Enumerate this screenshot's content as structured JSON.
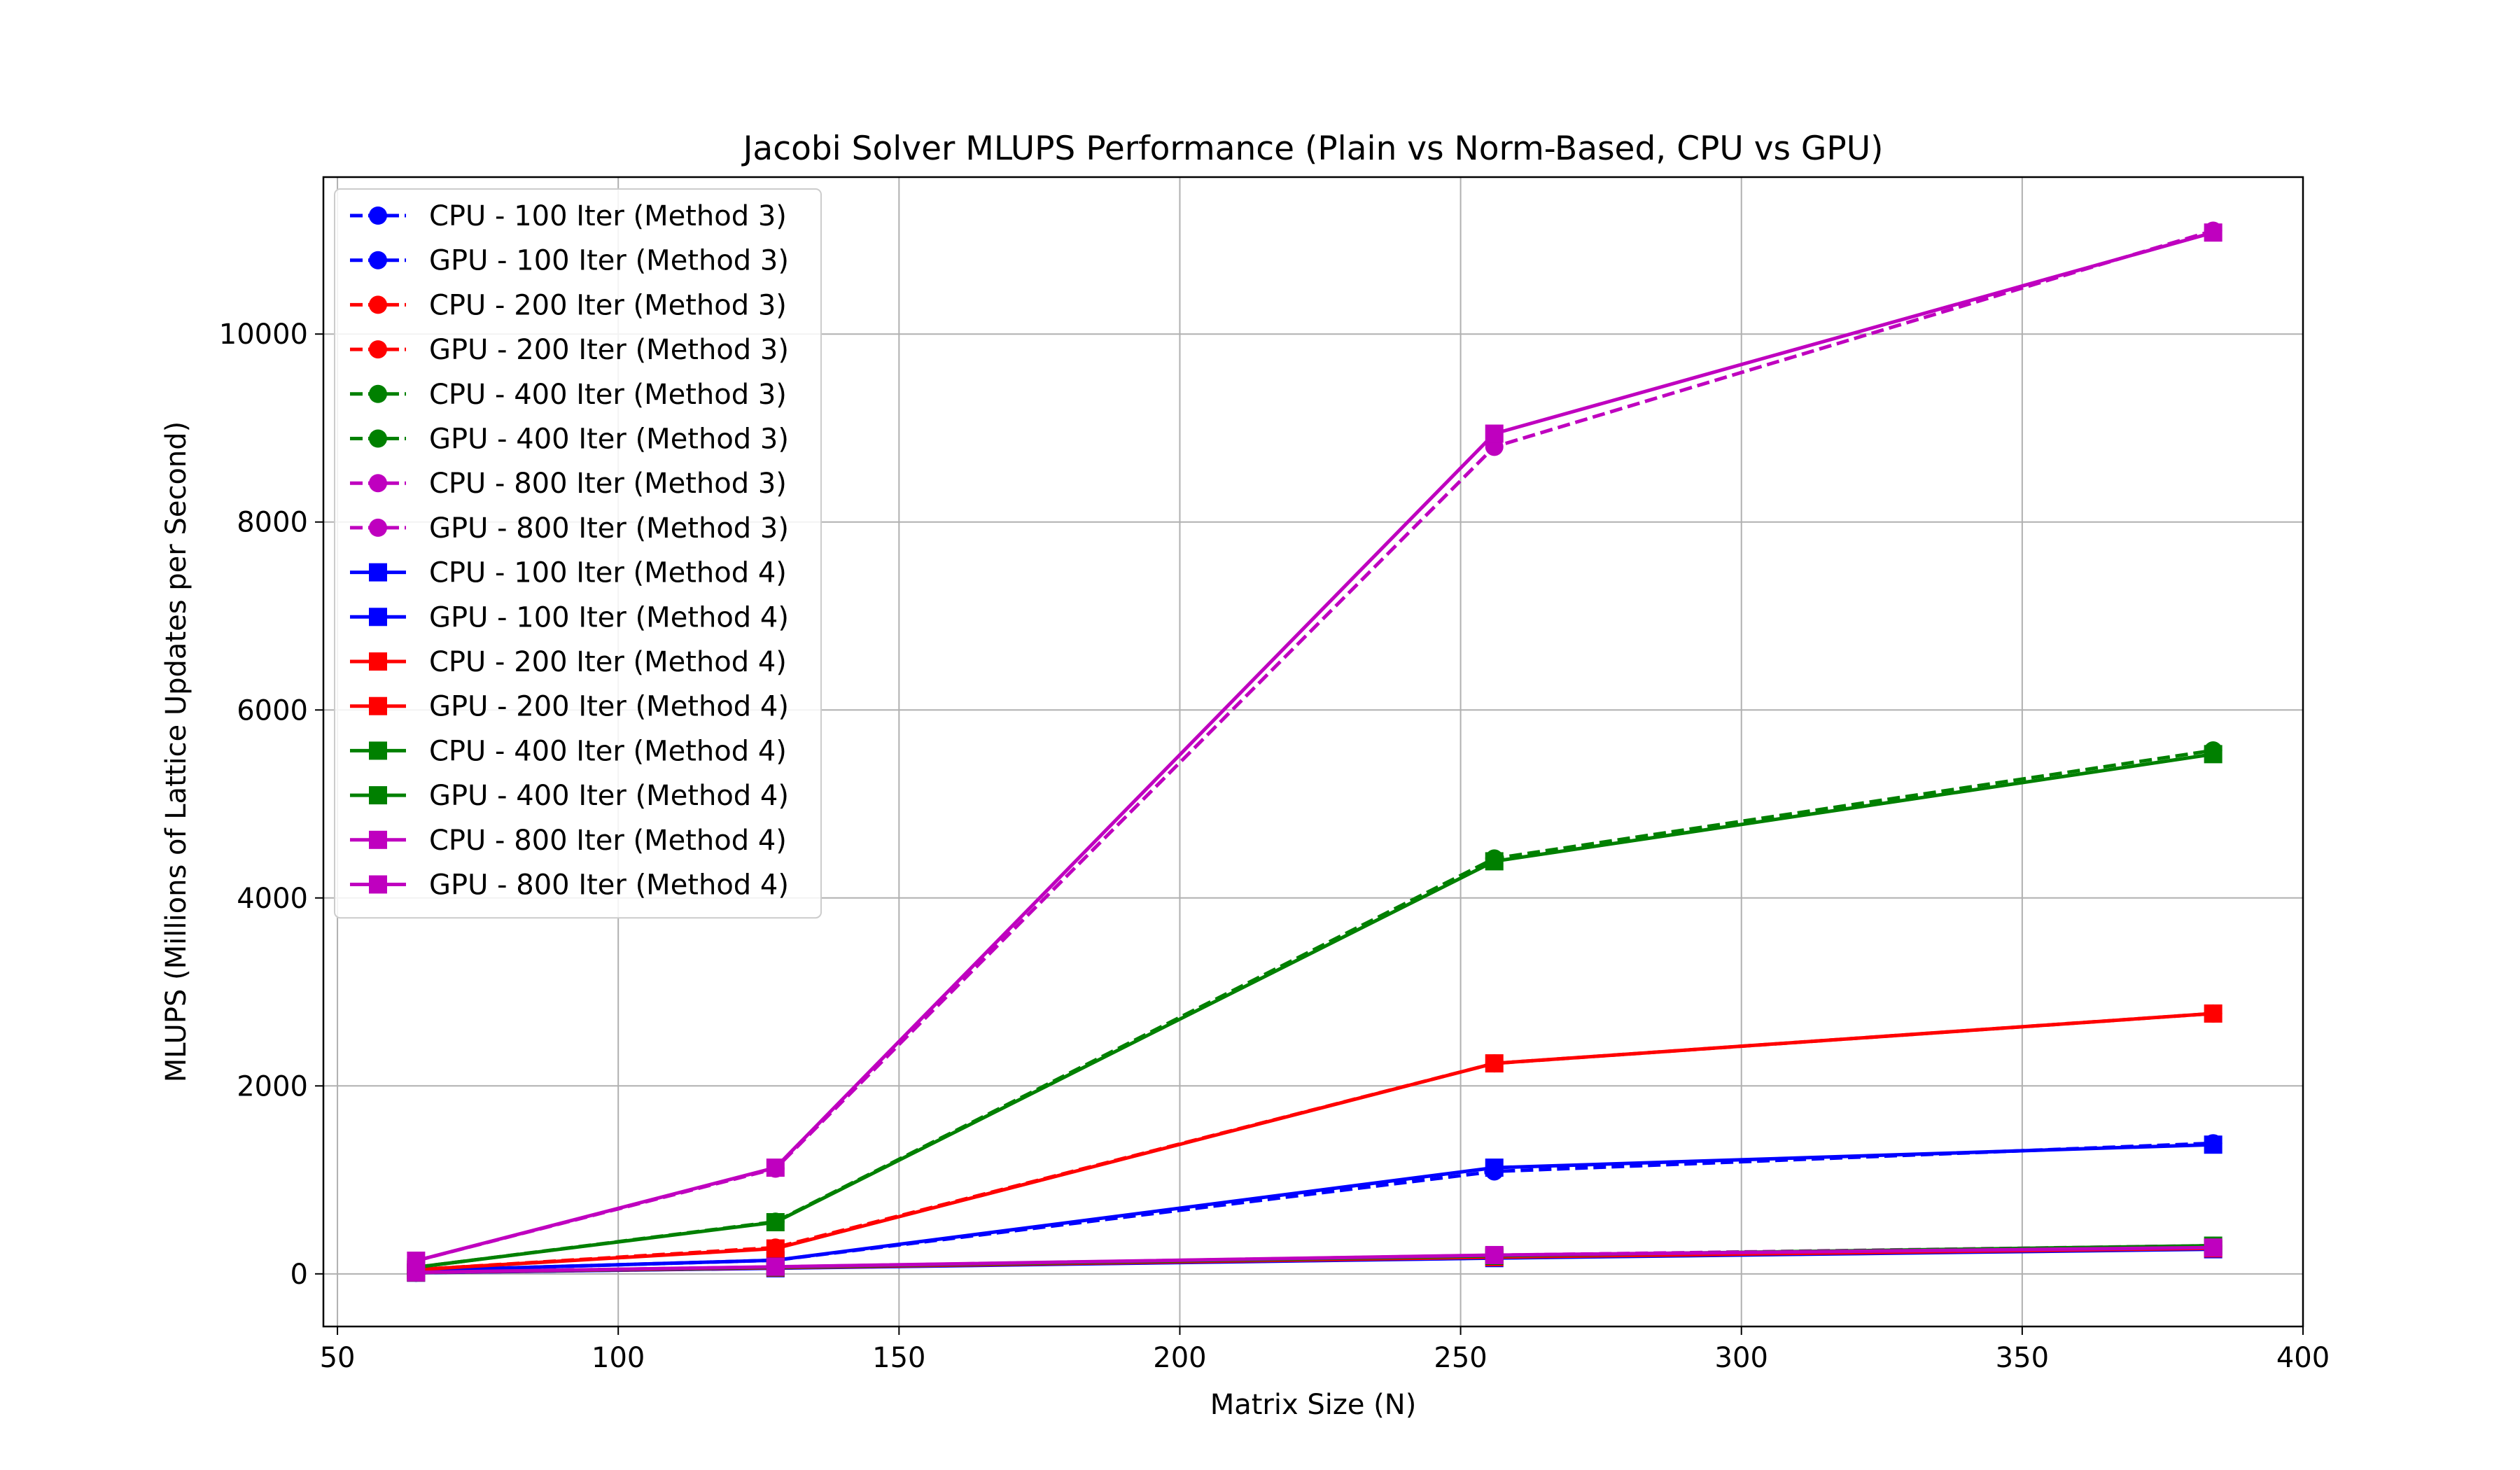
{
  "chart_data": {
    "type": "line",
    "title": "Jacobi Solver MLUPS Performance (Plain vs Norm-Based, CPU vs GPU)",
    "xlabel": "Matrix Size (N)",
    "ylabel": "MLUPS (Millions of Lattice Updates per Second)",
    "xlim": [
      47.5,
      400
    ],
    "ylim": [
      -560,
      11670
    ],
    "x_ticks": [
      50,
      100,
      150,
      200,
      250,
      300,
      350,
      400
    ],
    "y_ticks": [
      0,
      2000,
      4000,
      6000,
      8000,
      10000
    ],
    "x_tick_labels": [
      "50",
      "100",
      "150",
      "200",
      "250",
      "300",
      "350",
      "400"
    ],
    "y_tick_labels": [
      "0",
      "2000",
      "4000",
      "6000",
      "8000",
      "10000"
    ],
    "grid": true,
    "legend_position": "top-left",
    "series": [
      {
        "name": "CPU - 100 Iter (Method 3)",
        "color": "#0000ff",
        "dash": true,
        "marker": "circle",
        "x": [
          64,
          128,
          256,
          384
        ],
        "y": [
          12,
          62,
          170,
          265
        ]
      },
      {
        "name": "GPU - 100 Iter (Method 3)",
        "color": "#0000ff",
        "dash": true,
        "marker": "circle",
        "x": [
          64,
          128,
          256,
          384
        ],
        "y": [
          35,
          145,
          1090,
          1390
        ]
      },
      {
        "name": "CPU - 200 Iter (Method 3)",
        "color": "#ff0000",
        "dash": true,
        "marker": "circle",
        "x": [
          64,
          128,
          256,
          384
        ],
        "y": [
          14,
          68,
          180,
          275
        ]
      },
      {
        "name": "GPU - 200 Iter (Method 3)",
        "color": "#ff0000",
        "dash": true,
        "marker": "circle",
        "x": [
          64,
          128,
          256,
          384
        ],
        "y": [
          45,
          280,
          2240,
          2770
        ]
      },
      {
        "name": "CPU - 400 Iter (Method 3)",
        "color": "#008000",
        "dash": true,
        "marker": "circle",
        "x": [
          64,
          128,
          256,
          384
        ],
        "y": [
          15,
          72,
          195,
          290
        ]
      },
      {
        "name": "GPU - 400 Iter (Method 3)",
        "color": "#008000",
        "dash": true,
        "marker": "circle",
        "x": [
          64,
          128,
          256,
          384
        ],
        "y": [
          70,
          555,
          4420,
          5570
        ]
      },
      {
        "name": "CPU - 800 Iter (Method 3)",
        "color": "#bf00bf",
        "dash": true,
        "marker": "circle",
        "x": [
          64,
          128,
          256,
          384
        ],
        "y": [
          16,
          74,
          198,
          300
        ]
      },
      {
        "name": "GPU - 800 Iter (Method 3)",
        "color": "#bf00bf",
        "dash": true,
        "marker": "circle",
        "x": [
          64,
          128,
          256,
          384
        ],
        "y": [
          140,
          1120,
          8800,
          11100
        ]
      },
      {
        "name": "CPU - 100 Iter (Method 4)",
        "color": "#0000ff",
        "dash": false,
        "marker": "square",
        "x": [
          64,
          128,
          256,
          384
        ],
        "y": [
          12,
          60,
          168,
          262
        ]
      },
      {
        "name": "GPU - 100 Iter (Method 4)",
        "color": "#0000ff",
        "dash": false,
        "marker": "square",
        "x": [
          64,
          128,
          256,
          384
        ],
        "y": [
          35,
          145,
          1130,
          1375
        ]
      },
      {
        "name": "CPU - 200 Iter (Method 4)",
        "color": "#ff0000",
        "dash": false,
        "marker": "square",
        "x": [
          64,
          128,
          256,
          384
        ],
        "y": [
          14,
          66,
          178,
          272
        ]
      },
      {
        "name": "GPU - 200 Iter (Method 4)",
        "color": "#ff0000",
        "dash": false,
        "marker": "square",
        "x": [
          64,
          128,
          256,
          384
        ],
        "y": [
          45,
          270,
          2240,
          2770
        ]
      },
      {
        "name": "CPU - 400 Iter (Method 4)",
        "color": "#008000",
        "dash": false,
        "marker": "square",
        "x": [
          64,
          128,
          256,
          384
        ],
        "y": [
          15,
          70,
          192,
          300
        ]
      },
      {
        "name": "GPU - 400 Iter (Method 4)",
        "color": "#008000",
        "dash": false,
        "marker": "square",
        "x": [
          64,
          128,
          256,
          384
        ],
        "y": [
          70,
          550,
          4390,
          5530
        ]
      },
      {
        "name": "CPU - 800 Iter (Method 4)",
        "color": "#bf00bf",
        "dash": false,
        "marker": "square",
        "x": [
          64,
          128,
          256,
          384
        ],
        "y": [
          16,
          75,
          200,
          280
        ]
      },
      {
        "name": "GPU - 800 Iter (Method 4)",
        "color": "#bf00bf",
        "dash": false,
        "marker": "square",
        "x": [
          64,
          128,
          256,
          384
        ],
        "y": [
          140,
          1130,
          8940,
          11080
        ]
      }
    ]
  }
}
